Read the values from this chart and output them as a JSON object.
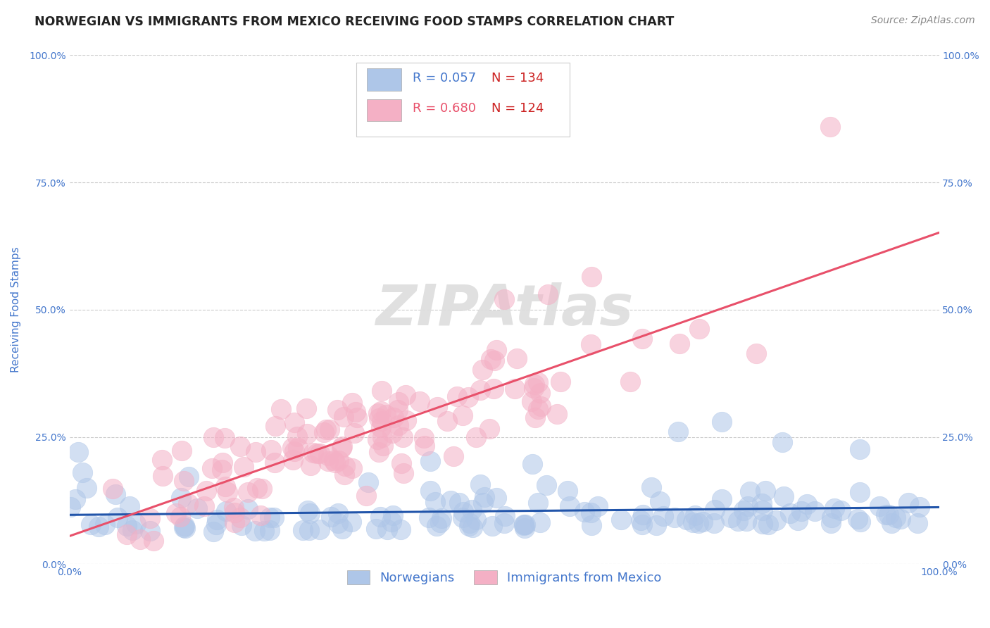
{
  "title": "NORWEGIAN VS IMMIGRANTS FROM MEXICO RECEIVING FOOD STAMPS CORRELATION CHART",
  "source": "Source: ZipAtlas.com",
  "ylabel": "Receiving Food Stamps",
  "xlim": [
    0,
    1
  ],
  "ylim": [
    0,
    1
  ],
  "ytick_values": [
    0.0,
    0.25,
    0.5,
    0.75,
    1.0
  ],
  "ytick_labels": [
    "0.0%",
    "25.0%",
    "50.0%",
    "75.0%",
    "100.0%"
  ],
  "xtick_values": [
    0.0,
    1.0
  ],
  "xtick_labels": [
    "0.0%",
    "100.0%"
  ],
  "legend_labels": [
    "Norwegians",
    "Immigrants from Mexico"
  ],
  "R_norwegian": 0.057,
  "N_norwegian": 134,
  "R_mexican": 0.68,
  "N_mexican": 124,
  "norwegian_color": "#aec6e8",
  "mexican_color": "#f4b0c5",
  "norwegian_line_color": "#2255aa",
  "mexican_line_color": "#e8506a",
  "axis_label_color": "#4477cc",
  "tick_label_color": "#4477cc",
  "legend_text_color": "#4477cc",
  "grid_color": "#cccccc",
  "background_color": "#ffffff",
  "watermark_color": "#dddddd",
  "title_fontsize": 12.5,
  "source_fontsize": 10,
  "ylabel_fontsize": 11,
  "tick_fontsize": 10,
  "legend_fontsize": 13
}
